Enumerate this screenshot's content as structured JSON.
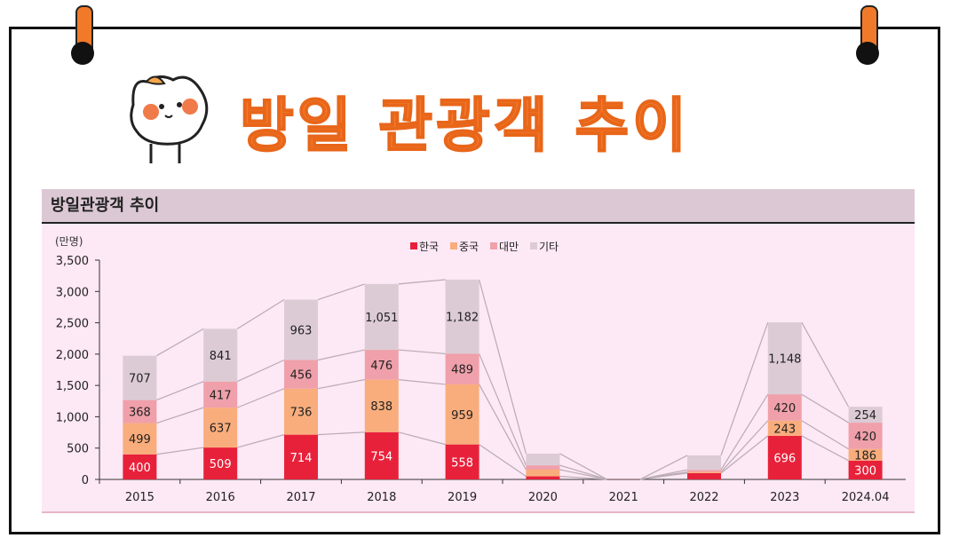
{
  "banner_title": "방일 관광객 추이",
  "colors": {
    "한국": "#e8213a",
    "중국": "#f9ad7c",
    "대만": "#efa0aa",
    "기타": "#dccbd5",
    "title": "#f47a2a"
  },
  "chart_data": {
    "type": "bar",
    "stacked": true,
    "title": "방일관광객 추이",
    "ylabel": "(만명)",
    "ylim": [
      0,
      3500
    ],
    "yticks": [
      "0",
      "500",
      "1,000",
      "1,500",
      "2,000",
      "2,500",
      "3,000",
      "3,500"
    ],
    "legend_position": "top-right",
    "categories": [
      "2015",
      "2016",
      "2017",
      "2018",
      "2019",
      "2020",
      "2021",
      "2022",
      "2023",
      "2024.04"
    ],
    "series": [
      {
        "name": "한국",
        "values": [
          400,
          509,
          714,
          754,
          558,
          49,
          2,
          101,
          696,
          300
        ],
        "labels": [
          "400",
          "509",
          "714",
          "754",
          "558",
          "",
          "",
          "",
          "696",
          "300"
        ]
      },
      {
        "name": "중국",
        "values": [
          499,
          637,
          736,
          838,
          959,
          107,
          0,
          19,
          243,
          186
        ],
        "labels": [
          "499",
          "637",
          "736",
          "838",
          "959",
          "",
          "",
          "",
          "243",
          "186"
        ]
      },
      {
        "name": "대만",
        "values": [
          368,
          417,
          456,
          476,
          489,
          69,
          0,
          33,
          420,
          420
        ],
        "labels": [
          "368",
          "417",
          "456",
          "476",
          "489",
          "",
          "",
          "",
          "420",
          "420"
        ]
      },
      {
        "name": "기타",
        "values": [
          707,
          841,
          963,
          1051,
          1182,
          187,
          1,
          230,
          1148,
          254
        ],
        "labels": [
          "707",
          "841",
          "963",
          "1,051",
          "1,182",
          "",
          "",
          "",
          "1,148",
          "254"
        ]
      }
    ]
  }
}
